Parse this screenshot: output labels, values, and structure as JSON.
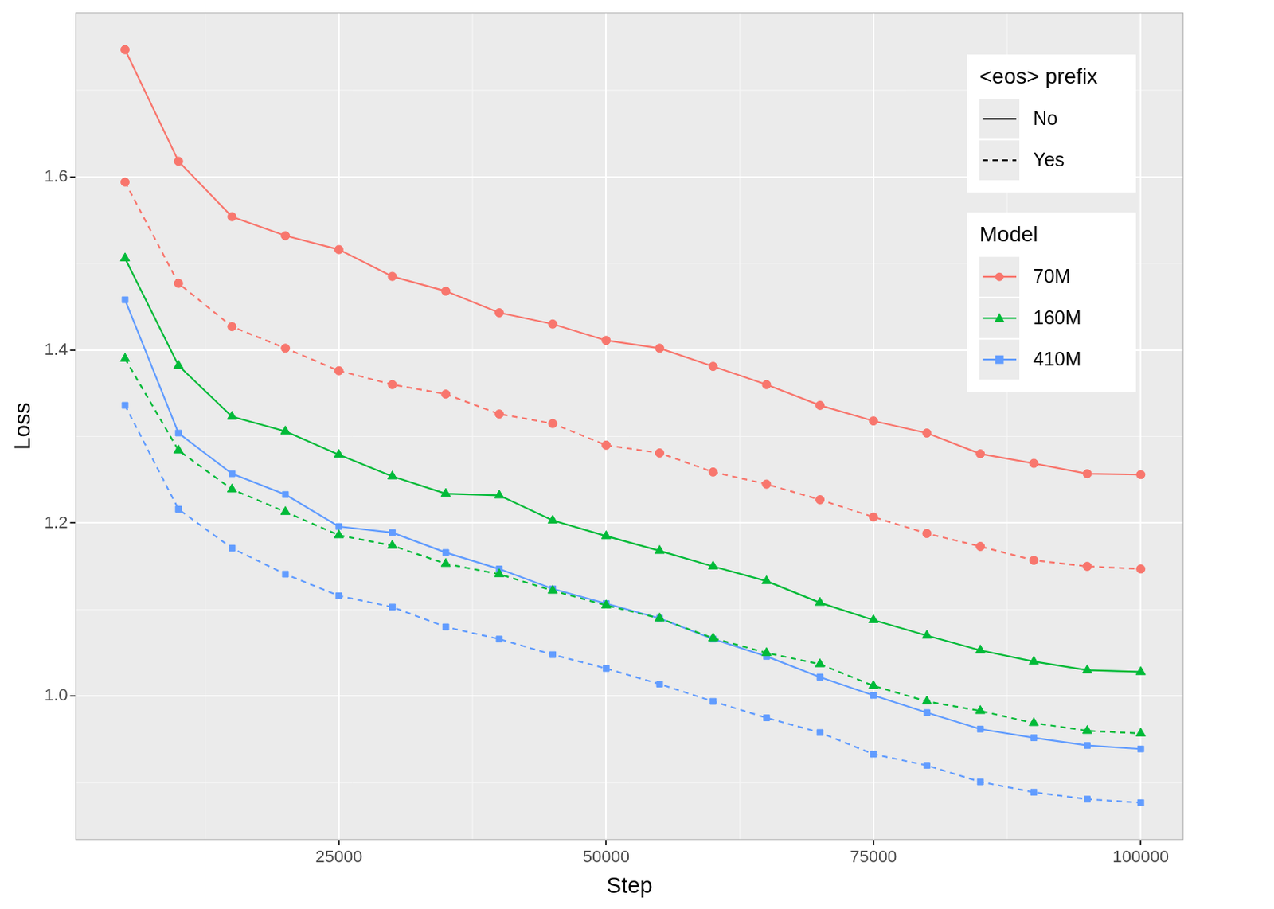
{
  "chart_data": {
    "type": "line",
    "x_label": "Step",
    "y_label": "Loss",
    "x": [
      5000,
      10000,
      15000,
      20000,
      25000,
      30000,
      35000,
      40000,
      45000,
      50000,
      55000,
      60000,
      65000,
      70000,
      75000,
      80000,
      85000,
      90000,
      95000,
      100000
    ],
    "xlim": [
      363,
      104000
    ],
    "xticks": [
      25000,
      50000,
      75000,
      100000
    ],
    "ylim": [
      0.834,
      1.79
    ],
    "yticks": [
      {
        "value": 1,
        "label": "1.0"
      },
      1.2,
      1.4,
      1.6
    ],
    "grid": true,
    "legend": "top-right",
    "legend_groups": [
      {
        "title": "<eos> prefix",
        "entries": [
          {
            "name": "No",
            "line_style": "solid"
          },
          {
            "name": "Yes",
            "line_style": "dashed"
          }
        ]
      },
      {
        "title": "Model",
        "entries": [
          {
            "name": "70M",
            "color": "#F8766D",
            "marker": "circle"
          },
          {
            "name": "160M",
            "color": "#00BA38",
            "marker": "triangle"
          },
          {
            "name": "410M",
            "color": "#619CFF",
            "marker": "square"
          }
        ]
      }
    ],
    "series": [
      {
        "name": "70M",
        "eos_prefix": "No",
        "color": "#F8766D",
        "marker": "circle",
        "line_style": "solid",
        "values": [
          1.747,
          1.618,
          1.554,
          1.532,
          1.516,
          1.485,
          1.468,
          1.443,
          1.43,
          1.411,
          1.402,
          1.381,
          1.36,
          1.336,
          1.318,
          1.304,
          1.28,
          1.269,
          1.257,
          1.256
        ]
      },
      {
        "name": "70M",
        "eos_prefix": "Yes",
        "color": "#F8766D",
        "marker": "circle",
        "line_style": "dashed",
        "values": [
          1.594,
          1.477,
          1.427,
          1.402,
          1.376,
          1.36,
          1.349,
          1.326,
          1.315,
          1.29,
          1.281,
          1.259,
          1.245,
          1.227,
          1.207,
          1.188,
          1.173,
          1.157,
          1.15,
          1.147
        ]
      },
      {
        "name": "160M",
        "eos_prefix": "No",
        "color": "#00BA38",
        "marker": "triangle",
        "line_style": "solid",
        "values": [
          1.506,
          1.382,
          1.323,
          1.306,
          1.279,
          1.254,
          1.234,
          1.232,
          1.203,
          1.185,
          1.168,
          1.15,
          1.133,
          1.108,
          1.088,
          1.07,
          1.053,
          1.04,
          1.03,
          1.028
        ]
      },
      {
        "name": "160M",
        "eos_prefix": "Yes",
        "color": "#00BA38",
        "marker": "triangle",
        "line_style": "dashed",
        "values": [
          1.39,
          1.284,
          1.239,
          1.213,
          1.186,
          1.174,
          1.153,
          1.141,
          1.122,
          1.105,
          1.09,
          1.067,
          1.05,
          1.037,
          1.012,
          0.994,
          0.983,
          0.969,
          0.96,
          0.957
        ]
      },
      {
        "name": "410M",
        "eos_prefix": "No",
        "color": "#619CFF",
        "marker": "square",
        "line_style": "solid",
        "values": [
          1.458,
          1.304,
          1.257,
          1.233,
          1.196,
          1.189,
          1.166,
          1.147,
          1.124,
          1.107,
          1.09,
          1.066,
          1.046,
          1.022,
          1.001,
          0.981,
          0.962,
          0.952,
          0.943,
          0.939
        ]
      },
      {
        "name": "410M",
        "eos_prefix": "Yes",
        "color": "#619CFF",
        "marker": "square",
        "line_style": "dashed",
        "values": [
          1.336,
          1.216,
          1.171,
          1.141,
          1.116,
          1.103,
          1.08,
          1.066,
          1.048,
          1.032,
          1.014,
          0.994,
          0.975,
          0.958,
          0.933,
          0.92,
          0.901,
          0.889,
          0.881,
          0.877
        ]
      }
    ]
  }
}
